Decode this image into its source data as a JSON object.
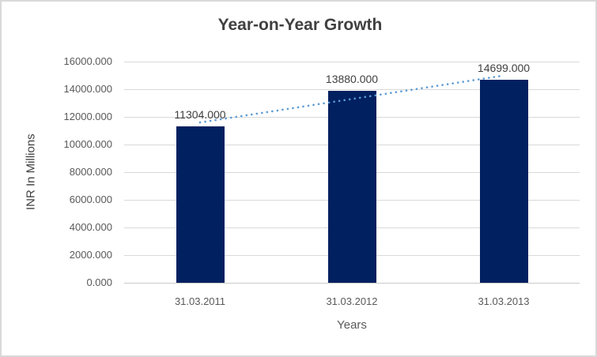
{
  "chart_data": {
    "type": "bar",
    "title": "Year-on-Year Growth",
    "categories": [
      "31.03.2011",
      "31.03.2012",
      "31.03.2013"
    ],
    "values": [
      11304,
      13880,
      14699
    ],
    "data_labels": [
      "11304.000",
      "13880.000",
      "14699.000"
    ],
    "xlabel": "Years",
    "ylabel": "INR In Millions",
    "ylim": [
      0,
      16000
    ],
    "ytick_step": 2000,
    "ytick_labels": [
      "0.000",
      "2000.000",
      "4000.000",
      "6000.000",
      "8000.000",
      "10000.000",
      "12000.000",
      "14000.000",
      "16000.000"
    ],
    "grid": true,
    "legend_position": "none",
    "trendline": {
      "type": "linear",
      "style": "dotted",
      "color": "#5B9BD5"
    },
    "colors": {
      "bar": "#002060",
      "gridline": "#D9D9D9",
      "axis_line": "#C9C9C9",
      "tick_text": "#595959",
      "title_text": "#404040",
      "border": "#D9D9D9",
      "background": "#FFFFFF"
    }
  }
}
